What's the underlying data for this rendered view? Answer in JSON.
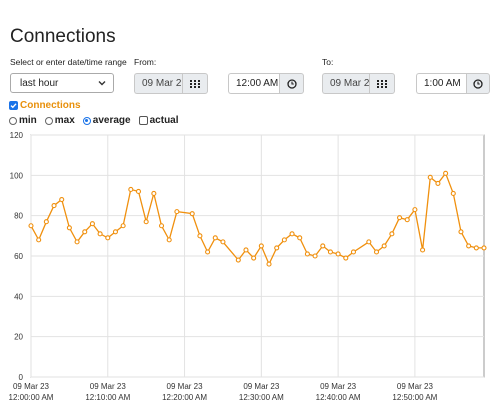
{
  "page": {
    "title": "Connections"
  },
  "range": {
    "label": "Select or enter date/time range",
    "selected": "last hour"
  },
  "from": {
    "label": "From:",
    "date": "09 Mar 2",
    "time": "12:00 AM"
  },
  "to": {
    "label": "To:",
    "date": "09 Mar 2",
    "time": "1:00 AM"
  },
  "icons": {
    "calendar": "calendar-grid-icon",
    "clock": "clock-icon",
    "dropdown": "chevron-down-icon"
  },
  "series_toggle": {
    "label": "Connections",
    "checked": true,
    "color": "#e8900b"
  },
  "aggregation": {
    "options": [
      {
        "label": "min",
        "selected": false
      },
      {
        "label": "max",
        "selected": false
      },
      {
        "label": "average",
        "selected": true
      }
    ],
    "actual": {
      "label": "actual",
      "checked": false
    }
  },
  "chart_data": {
    "type": "line",
    "ylim": [
      0,
      120
    ],
    "yticks": [
      "0",
      "20",
      "40",
      "60",
      "80",
      "100",
      "120"
    ],
    "xtick_dates": [
      "09 Mar 23",
      "09 Mar 23",
      "09 Mar 23",
      "09 Mar 23",
      "09 Mar 23",
      "09 Mar 23"
    ],
    "xtick_times": [
      "12:00:00 AM",
      "12:10:00 AM",
      "12:20:00 AM",
      "12:30:00 AM",
      "12:40:00 AM",
      "12:50:00 AM"
    ],
    "x_range_minutes": [
      0,
      59
    ],
    "color": "#f0900e",
    "grid": true,
    "x": [
      0,
      1,
      2,
      3,
      4,
      5,
      6,
      7,
      8,
      9,
      10,
      11,
      12,
      13,
      14,
      15,
      16,
      17,
      18,
      19,
      20,
      21,
      22,
      23,
      24,
      25,
      26,
      27,
      28,
      29,
      30,
      31,
      32,
      33,
      34,
      35,
      36,
      37,
      38,
      39,
      40,
      41,
      42,
      43,
      44,
      45,
      46,
      47,
      48,
      49,
      50,
      51,
      52,
      53,
      54,
      55,
      56,
      57,
      58,
      59
    ],
    "values": [
      75,
      68,
      77,
      85,
      88,
      74,
      67,
      72,
      76,
      71,
      69,
      72,
      75,
      93,
      92,
      77,
      91,
      75,
      68,
      82,
      null,
      81,
      70,
      62,
      69,
      67,
      null,
      58,
      63,
      59,
      65,
      56,
      64,
      68,
      71,
      69,
      61,
      60,
      65,
      62,
      61,
      59,
      62,
      null,
      67,
      62,
      65,
      71,
      79,
      78,
      83,
      63,
      99,
      96,
      101,
      91,
      72,
      65,
      64,
      64
    ]
  }
}
